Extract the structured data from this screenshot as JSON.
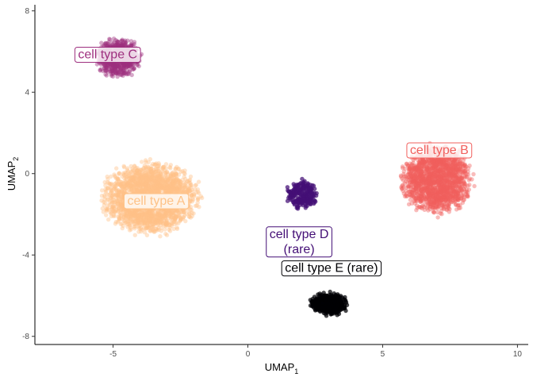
{
  "chart_data": {
    "type": "scatter",
    "title": "",
    "xlabel": "UMAP",
    "xlabel_sub": "1",
    "ylabel": "UMAP",
    "ylabel_sub": "2",
    "xlim": [
      -7.9,
      10.4
    ],
    "ylim": [
      -8.4,
      8.3
    ],
    "x_ticks": [
      -5,
      0,
      5,
      10
    ],
    "x_tick_labels": [
      "-5",
      "0",
      "5",
      "10"
    ],
    "y_ticks": [
      -8,
      -4,
      0,
      4,
      8
    ],
    "y_tick_labels": [
      "-8",
      "-4",
      "0",
      "4",
      "8"
    ],
    "grid": false,
    "legend": "none",
    "series": [
      {
        "name": "cell type A",
        "color": "#FEC287",
        "center": [
          -3.6,
          -1.2
        ],
        "spread": [
          3.2,
          3.1
        ],
        "n_points": 2200,
        "label_position": [
          -3.4,
          -1.3
        ],
        "label_lines": [
          "cell type A"
        ]
      },
      {
        "name": "cell type B",
        "color": "#F1605D",
        "center": [
          7.0,
          -0.3
        ],
        "spread": [
          2.3,
          3.0
        ],
        "n_points": 1600,
        "label_position": [
          7.1,
          1.2
        ],
        "label_lines": [
          "cell type B"
        ]
      },
      {
        "name": "cell type C",
        "color": "#9E2F7F",
        "center": [
          -4.8,
          5.7
        ],
        "spread": [
          1.5,
          1.7
        ],
        "n_points": 700,
        "label_position": [
          -5.2,
          5.9
        ],
        "label_lines": [
          "cell type C"
        ]
      },
      {
        "name": "cell type D (rare)",
        "color": "#440F76",
        "center": [
          2.0,
          -1.0
        ],
        "spread": [
          1.0,
          1.3
        ],
        "n_points": 220,
        "label_position": [
          1.9,
          -3.3
        ],
        "label_lines": [
          "cell type D",
          "(rare)"
        ]
      },
      {
        "name": "cell type E (rare)",
        "color": "#000004",
        "center": [
          3.0,
          -6.4
        ],
        "spread": [
          1.3,
          1.0
        ],
        "n_points": 450,
        "label_position": [
          3.1,
          -4.6
        ],
        "label_lines": [
          "cell type E (rare)"
        ]
      }
    ]
  }
}
